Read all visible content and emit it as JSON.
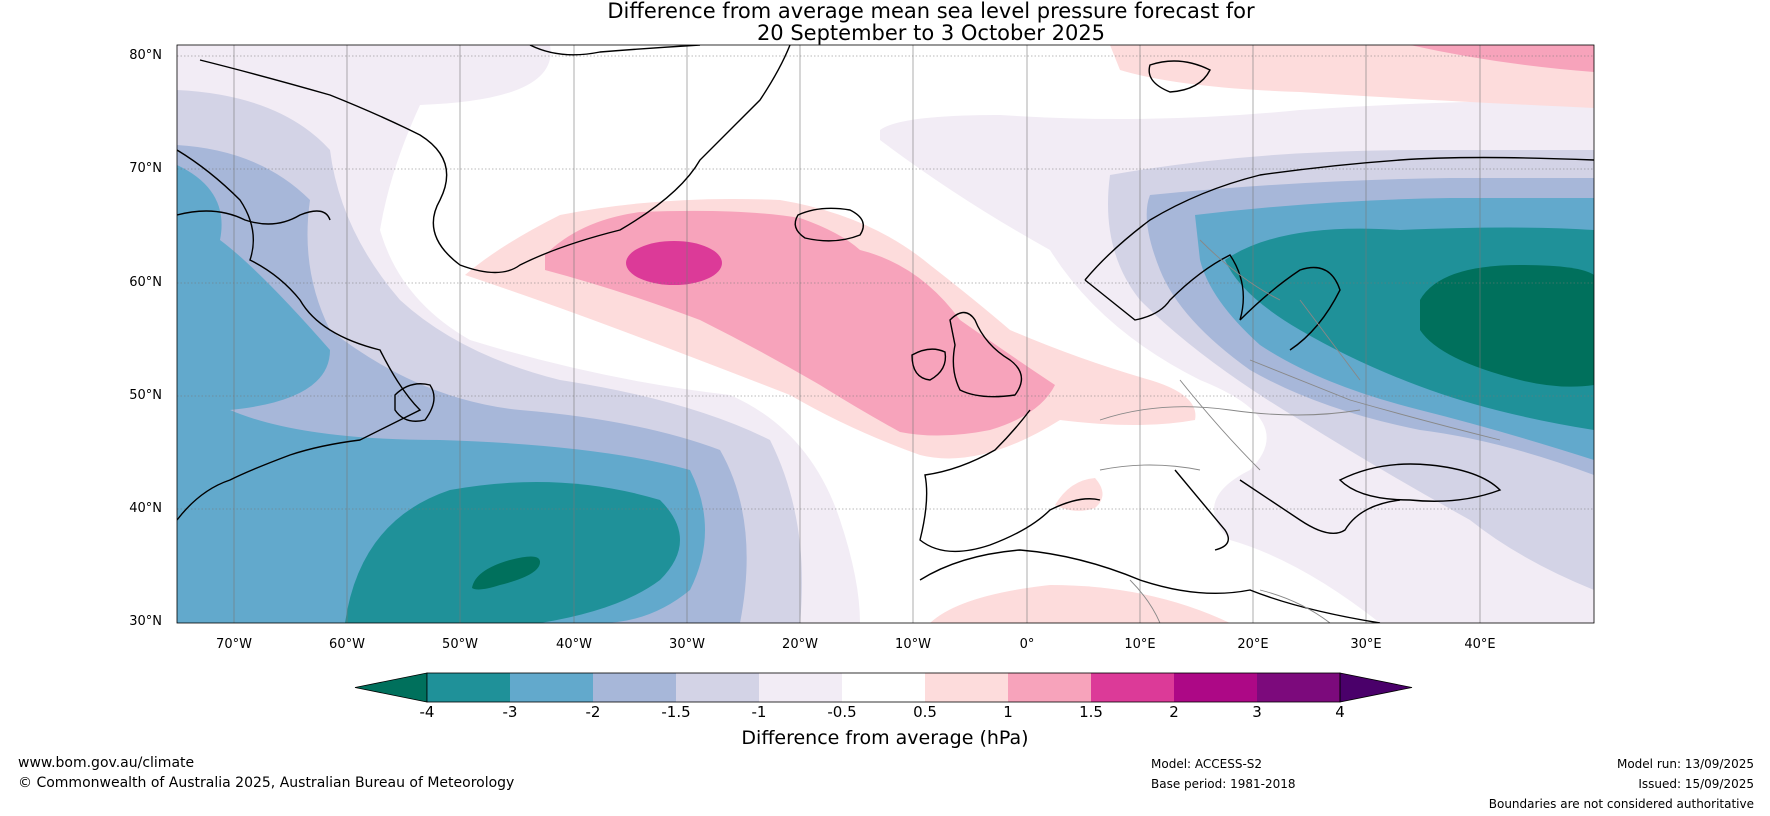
{
  "title": {
    "line1": "Difference from average mean sea level pressure forecast for",
    "line2": "20 September to 3 October 2025"
  },
  "axes": {
    "lat_labels": [
      "80°N",
      "70°N",
      "60°N",
      "50°N",
      "40°N",
      "30°N"
    ],
    "lat_values": [
      80,
      70,
      60,
      50,
      40,
      30
    ],
    "lon_labels": [
      "70°W",
      "60°W",
      "50°W",
      "40°W",
      "30°W",
      "20°W",
      "10°W",
      "0°",
      "10°E",
      "20°E",
      "30°E",
      "40°E"
    ],
    "lon_values": [
      -70,
      -60,
      -50,
      -40,
      -30,
      -20,
      -10,
      0,
      10,
      20,
      30,
      40
    ],
    "lon_range": [
      -75,
      50
    ],
    "lat_range": [
      29,
      81
    ]
  },
  "colorbar": {
    "label": "Difference from average (hPa)",
    "tick_labels": [
      "-4",
      "-3",
      "-2",
      "-1.5",
      "-1",
      "-0.5",
      "0.5",
      "1",
      "1.5",
      "2",
      "3",
      "4"
    ],
    "colors": [
      "#00705c",
      "#1f9199",
      "#62a9cc",
      "#a7b7d9",
      "#d3d3e6",
      "#f2ecf5",
      "#ffffff",
      "#fddcdc",
      "#f7a3bb",
      "#dc3a98",
      "#ad0886",
      "#7c0a7c",
      "#4a006a"
    ]
  },
  "footer": {
    "website": "www.bom.gov.au/climate",
    "copyright": "© Commonwealth of Australia 2025, Australian Bureau of Meteorology",
    "model": "Model: ACCESS-S2",
    "base_period": "Base period: 1981-2018",
    "model_run": "Model run: 13/09/2025",
    "issued": "Issued: 15/09/2025",
    "disclaimer": "Boundaries are not considered authoritative"
  }
}
